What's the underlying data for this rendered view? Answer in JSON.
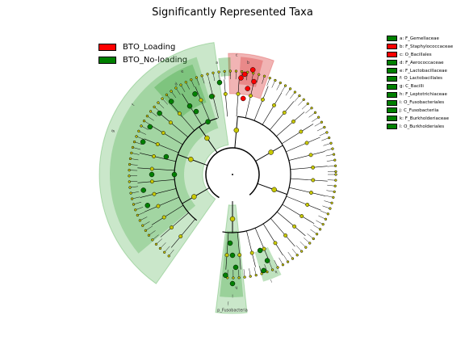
{
  "title": "Significantly Represented Taxa",
  "legend": [
    {
      "label": "BTO_Loading",
      "color": "#ff0000"
    },
    {
      "label": "BTO_No-loading",
      "color": "#008000"
    }
  ],
  "taxa_legend": [
    {
      "label": "a: F_Gemellaceae",
      "group": "BTO_No-loading"
    },
    {
      "label": "b: F_Staphylococcaceae",
      "group": "BTO_Loading"
    },
    {
      "label": "c: O_Bacillales",
      "group": "BTO_Loading"
    },
    {
      "label": "d: F_Aerococcaceae",
      "group": "BTO_No-loading"
    },
    {
      "label": "e: F_Lactobacillaceae",
      "group": "BTO_No-loading"
    },
    {
      "label": "f: O_Lactobacillales",
      "group": "BTO_No-loading"
    },
    {
      "label": "g: C_Bacilli",
      "group": "BTO_No-loading"
    },
    {
      "label": "h: F_Leptotrichiaceae",
      "group": "BTO_No-loading"
    },
    {
      "label": "i: O_Fusobacteriales",
      "group": "BTO_No-loading"
    },
    {
      "label": "j: C_Fusobacteriia",
      "group": "BTO_No-loading"
    },
    {
      "label": "k: F_Burkholderiaceae",
      "group": "BTO_No-loading"
    },
    {
      "label": "l: O_Burkholderiales",
      "group": "BTO_No-loading"
    }
  ],
  "clade_labels": {
    "phylum_label": "p_Fusobacteria",
    "short": [
      "a",
      "b",
      "c",
      "d",
      "e",
      "f",
      "g",
      "h",
      "i",
      "j",
      "k",
      "l"
    ]
  },
  "colors": {
    "loading": "#ff0000",
    "no_loading": "#008000",
    "neutral": "#c8c800",
    "shade_green": "#2ca02c",
    "shade_red": "#d62728"
  }
}
